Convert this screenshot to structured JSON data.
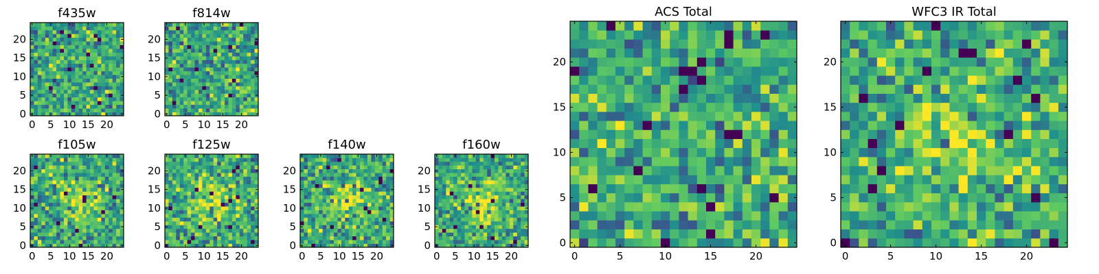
{
  "figure": {
    "background": "#ffffff",
    "colormap": "viridis",
    "colormap_stops": [
      "#440154",
      "#3b528b",
      "#21918c",
      "#5ec962",
      "#fde725"
    ],
    "value_range": [
      0,
      1
    ]
  },
  "chart_data": [
    {
      "type": "heatmap",
      "title": "f435w",
      "xlabel": "",
      "ylabel": "",
      "grid_size": 25,
      "xlim": [
        0,
        24
      ],
      "ylim": [
        0,
        24
      ],
      "xticks": [
        0,
        5,
        10,
        15,
        20
      ],
      "yticks": [
        0,
        5,
        10,
        15,
        20
      ],
      "origin": "lower",
      "pattern": "noise",
      "seed": 11,
      "values": null
    },
    {
      "type": "heatmap",
      "title": "f814w",
      "xlabel": "",
      "ylabel": "",
      "grid_size": 25,
      "xlim": [
        0,
        24
      ],
      "ylim": [
        0,
        24
      ],
      "xticks": [
        0,
        5,
        10,
        15,
        20
      ],
      "yticks": [
        0,
        5,
        10,
        15,
        20
      ],
      "origin": "lower",
      "pattern": "noise",
      "seed": 23,
      "values": null
    },
    {
      "type": "heatmap",
      "title": "f105w",
      "xlabel": "",
      "ylabel": "",
      "grid_size": 25,
      "xlim": [
        0,
        24
      ],
      "ylim": [
        0,
        24
      ],
      "xticks": [
        0,
        5,
        10,
        15,
        20
      ],
      "yticks": [
        0,
        5,
        10,
        15,
        20
      ],
      "origin": "lower",
      "pattern": "noise_with_central_source",
      "seed": 37,
      "values": null
    },
    {
      "type": "heatmap",
      "title": "f125w",
      "xlabel": "",
      "ylabel": "",
      "grid_size": 25,
      "xlim": [
        0,
        24
      ],
      "ylim": [
        0,
        24
      ],
      "xticks": [
        0,
        5,
        10,
        15,
        20
      ],
      "yticks": [
        0,
        5,
        10,
        15,
        20
      ],
      "origin": "lower",
      "pattern": "noise_with_central_source",
      "seed": 41,
      "values": null
    },
    {
      "type": "heatmap",
      "title": "f140w",
      "xlabel": "",
      "ylabel": "",
      "grid_size": 25,
      "xlim": [
        0,
        24
      ],
      "ylim": [
        0,
        24
      ],
      "xticks": [
        0,
        5,
        10,
        15,
        20
      ],
      "yticks": [
        0,
        5,
        10,
        15,
        20
      ],
      "origin": "lower",
      "pattern": "noise_with_central_source",
      "seed": 53,
      "values": null
    },
    {
      "type": "heatmap",
      "title": "f160w",
      "xlabel": "",
      "ylabel": "",
      "grid_size": 25,
      "xlim": [
        0,
        24
      ],
      "ylim": [
        0,
        24
      ],
      "xticks": [
        0,
        5,
        10,
        15,
        20
      ],
      "yticks": [
        0,
        5,
        10,
        15,
        20
      ],
      "origin": "lower",
      "pattern": "noise_with_central_source",
      "seed": 67,
      "values": null
    },
    {
      "type": "heatmap",
      "title": "ACS Total",
      "xlabel": "",
      "ylabel": "",
      "grid_size": 25,
      "xlim": [
        0,
        24
      ],
      "ylim": [
        0,
        24
      ],
      "xticks": [
        0,
        5,
        10,
        15,
        20
      ],
      "yticks": [
        0,
        5,
        10,
        15,
        20
      ],
      "origin": "lower",
      "pattern": "noise",
      "seed": 79,
      "values": null
    },
    {
      "type": "heatmap",
      "title": "WFC3 IR Total",
      "xlabel": "",
      "ylabel": "",
      "grid_size": 25,
      "xlim": [
        0,
        24
      ],
      "ylim": [
        0,
        24
      ],
      "xticks": [
        0,
        5,
        10,
        15,
        20
      ],
      "yticks": [
        0,
        5,
        10,
        15,
        20
      ],
      "origin": "lower",
      "pattern": "noise_with_central_source",
      "seed": 97,
      "values": null
    }
  ]
}
